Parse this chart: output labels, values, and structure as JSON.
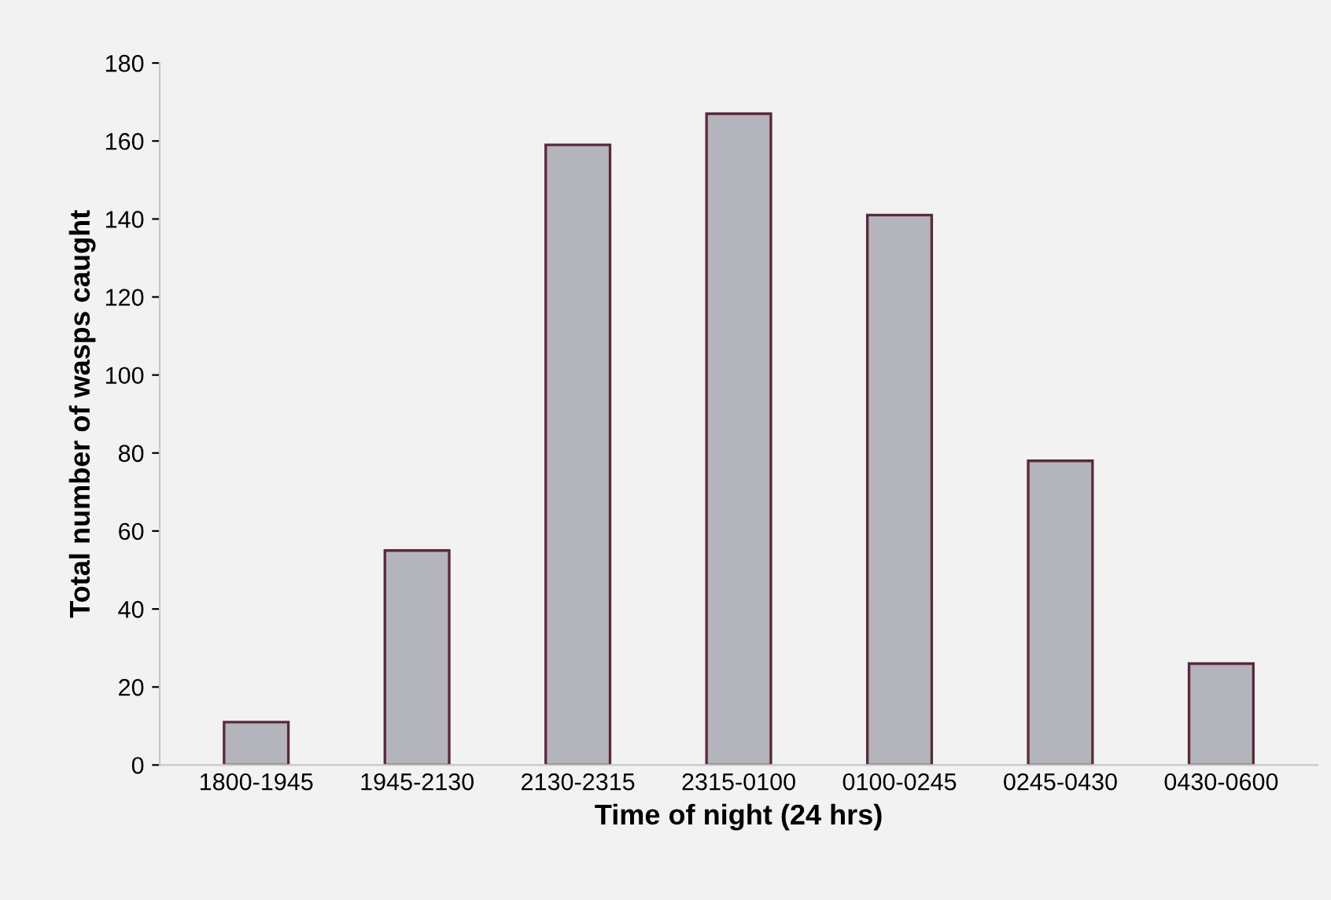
{
  "chart_data": {
    "type": "bar",
    "xlabel": "Time of night (24 hrs)",
    "ylabel": "Total number of wasps caught",
    "categories": [
      "1800-1945",
      "1945-2130",
      "2130-2315",
      "2315-0100",
      "0100-0245",
      "0245-0430",
      "0430-0600"
    ],
    "values": [
      11,
      55,
      159,
      167,
      141,
      78,
      26
    ],
    "color": "#b4b4bc",
    "ylim": [
      0,
      180
    ],
    "yticks": [
      0,
      20,
      40,
      60,
      80,
      100,
      120,
      140,
      160,
      180
    ],
    "grid": false
  }
}
